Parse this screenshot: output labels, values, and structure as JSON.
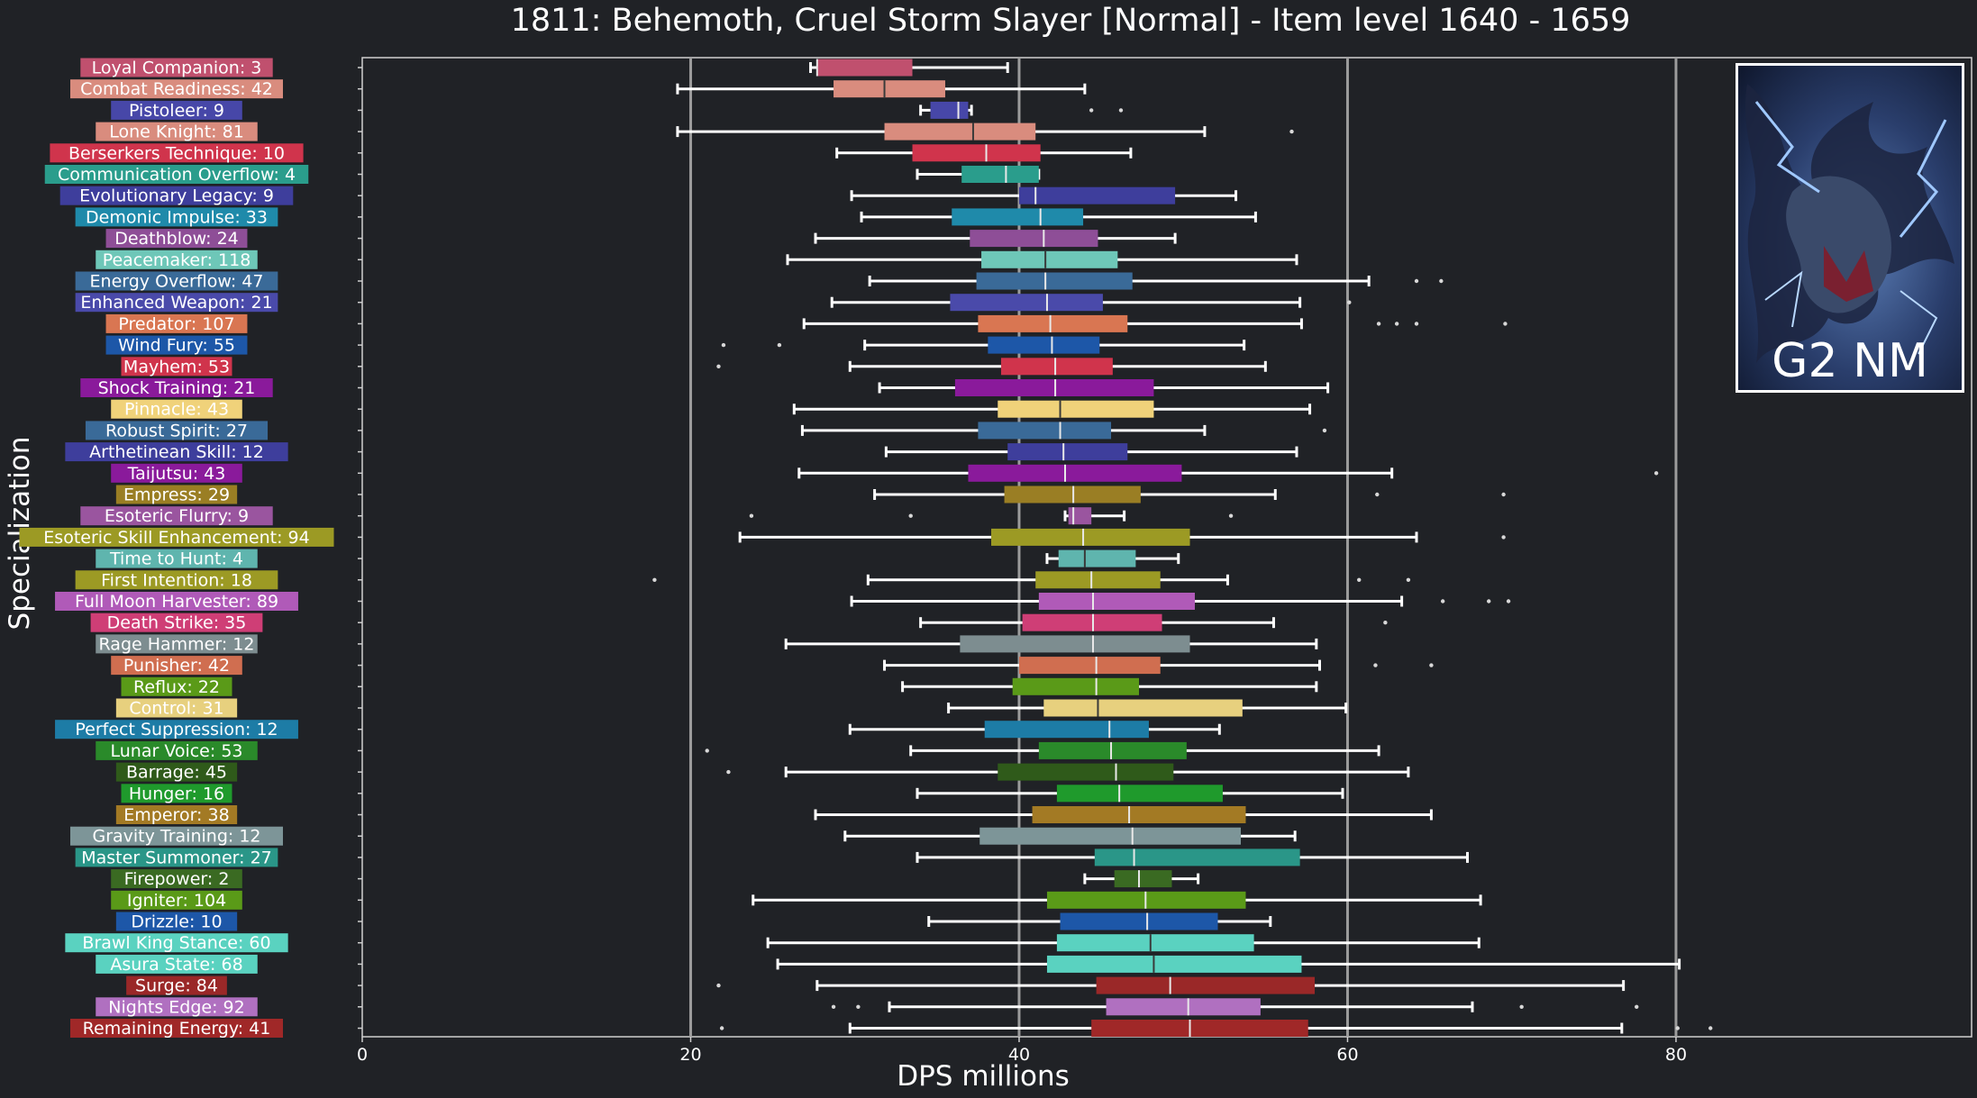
{
  "chart_data": {
    "type": "boxplot",
    "title": "1811: Behemoth, Cruel Storm Slayer [Normal] - Item level 1640 - 1659",
    "xlabel": "DPS millions",
    "ylabel": "Specialization",
    "xlim": [
      0,
      98
    ],
    "xticks": [
      0,
      20,
      40,
      60,
      80
    ],
    "vlines": [
      20,
      40,
      60,
      80
    ],
    "inset_label": "G2 NM",
    "series": [
      {
        "label": "Loyal Companion: 3",
        "color": "#c0506e",
        "whislo": 27.3,
        "q1": 27.7,
        "med": 27.7,
        "q3": 33.5,
        "whishi": 39.3,
        "fliers": []
      },
      {
        "label": "Combat Readiness: 42",
        "color": "#d98c7e",
        "whislo": 19.2,
        "q1": 28.7,
        "med": 31.8,
        "q3": 35.5,
        "whishi": 44.0,
        "fliers": []
      },
      {
        "label": "Pistoleer: 9",
        "color": "#4747a8",
        "whislo": 34.0,
        "q1": 34.6,
        "med": 36.3,
        "q3": 36.9,
        "whishi": 37.1,
        "fliers": [
          44.4,
          46.2
        ]
      },
      {
        "label": "Lone Knight: 81",
        "color": "#d98c7e",
        "whislo": 19.2,
        "q1": 31.8,
        "med": 37.2,
        "q3": 41.0,
        "whishi": 51.3,
        "fliers": [
          56.6
        ]
      },
      {
        "label": "Berserkers Technique: 10",
        "color": "#d0344c",
        "whislo": 28.9,
        "q1": 33.5,
        "med": 38.0,
        "q3": 41.3,
        "whishi": 46.8,
        "fliers": []
      },
      {
        "label": "Communication Overflow: 4",
        "color": "#2a9d8c",
        "whislo": 33.8,
        "q1": 36.5,
        "med": 39.2,
        "q3": 41.2,
        "whishi": 41.2,
        "fliers": []
      },
      {
        "label": "Evolutionary Legacy: 9",
        "color": "#3e3e9c",
        "whislo": 29.8,
        "q1": 40.0,
        "med": 41.0,
        "q3": 49.5,
        "whishi": 53.2,
        "fliers": []
      },
      {
        "label": "Demonic Impulse: 33",
        "color": "#1f8aaa",
        "whislo": 30.4,
        "q1": 35.9,
        "med": 41.3,
        "q3": 43.9,
        "whishi": 54.4,
        "fliers": []
      },
      {
        "label": "Deathblow: 24",
        "color": "#8e4e97",
        "whislo": 27.6,
        "q1": 37.0,
        "med": 41.5,
        "q3": 44.8,
        "whishi": 49.5,
        "fliers": []
      },
      {
        "label": "Peacemaker: 118",
        "color": "#6ec7b8",
        "whislo": 25.9,
        "q1": 37.7,
        "med": 41.6,
        "q3": 46.0,
        "whishi": 56.9,
        "fliers": []
      },
      {
        "label": "Energy Overflow: 47",
        "color": "#3a6a98",
        "whislo": 30.9,
        "q1": 37.4,
        "med": 41.6,
        "q3": 46.9,
        "whishi": 61.3,
        "fliers": [
          64.2,
          65.7
        ]
      },
      {
        "label": "Enhanced Weapon: 21",
        "color": "#4a4aaa",
        "whislo": 28.6,
        "q1": 35.8,
        "med": 41.7,
        "q3": 45.1,
        "whishi": 57.1,
        "fliers": [
          60.1
        ]
      },
      {
        "label": "Predator: 107",
        "color": "#d97652",
        "whislo": 26.9,
        "q1": 37.5,
        "med": 41.9,
        "q3": 46.6,
        "whishi": 57.2,
        "fliers": [
          61.9,
          63.0,
          64.2,
          69.6
        ]
      },
      {
        "label": "Wind Fury: 55",
        "color": "#1d57a8",
        "whislo": 30.6,
        "q1": 38.1,
        "med": 42.0,
        "q3": 44.9,
        "whishi": 53.7,
        "fliers": [
          22.0,
          25.4
        ]
      },
      {
        "label": "Mayhem: 53",
        "color": "#d0344c",
        "whislo": 29.7,
        "q1": 38.9,
        "med": 42.2,
        "q3": 45.7,
        "whishi": 55.0,
        "fliers": [
          21.7
        ]
      },
      {
        "label": "Shock Training: 21",
        "color": "#8a1a9b",
        "whislo": 31.5,
        "q1": 36.1,
        "med": 42.2,
        "q3": 48.2,
        "whishi": 58.8,
        "fliers": []
      },
      {
        "label": "Pinnacle: 43",
        "color": "#f0d27a",
        "whislo": 26.3,
        "q1": 38.7,
        "med": 42.5,
        "q3": 48.2,
        "whishi": 57.7,
        "fliers": []
      },
      {
        "label": "Robust Spirit: 27",
        "color": "#3a6a98",
        "whislo": 26.8,
        "q1": 37.5,
        "med": 42.5,
        "q3": 45.6,
        "whishi": 51.3,
        "fliers": [
          58.6
        ]
      },
      {
        "label": "Arthetinean Skill: 12",
        "color": "#3e3e9c",
        "whislo": 31.9,
        "q1": 39.3,
        "med": 42.7,
        "q3": 46.6,
        "whishi": 56.9,
        "fliers": []
      },
      {
        "label": "Taijutsu: 43",
        "color": "#8a1a9b",
        "whislo": 26.6,
        "q1": 36.9,
        "med": 42.8,
        "q3": 49.9,
        "whishi": 62.7,
        "fliers": [
          78.8
        ]
      },
      {
        "label": "Empress: 29",
        "color": "#9a7e24",
        "whislo": 31.2,
        "q1": 39.1,
        "med": 43.3,
        "q3": 47.4,
        "whishi": 55.6,
        "fliers": [
          61.8,
          69.5
        ]
      },
      {
        "label": "Esoteric Flurry: 9",
        "color": "#9a559f",
        "whislo": 42.8,
        "q1": 43.0,
        "med": 43.3,
        "q3": 44.4,
        "whishi": 46.4,
        "fliers": [
          23.7,
          33.4,
          52.9
        ]
      },
      {
        "label": "Esoteric Skill Enhancement: 94",
        "color": "#9c9a24",
        "whislo": 23.0,
        "q1": 38.3,
        "med": 43.9,
        "q3": 50.4,
        "whishi": 64.2,
        "fliers": [
          69.5
        ]
      },
      {
        "label": "Time to Hunt: 4",
        "color": "#5fb5ae",
        "whislo": 41.7,
        "q1": 42.4,
        "med": 44.0,
        "q3": 47.1,
        "whishi": 49.7,
        "fliers": []
      },
      {
        "label": "First Intention: 18",
        "color": "#9c9a24",
        "whislo": 30.8,
        "q1": 41.0,
        "med": 44.4,
        "q3": 48.6,
        "whishi": 52.7,
        "fliers": [
          17.8,
          60.7,
          63.7
        ]
      },
      {
        "label": "Full Moon Harvester: 89",
        "color": "#b05ab8",
        "whislo": 29.8,
        "q1": 41.2,
        "med": 44.5,
        "q3": 50.7,
        "whishi": 63.3,
        "fliers": [
          65.8,
          68.6,
          69.8
        ]
      },
      {
        "label": "Death Strike: 35",
        "color": "#cf3e76",
        "whislo": 34.0,
        "q1": 40.2,
        "med": 44.5,
        "q3": 48.7,
        "whishi": 55.5,
        "fliers": [
          62.3
        ]
      },
      {
        "label": "Rage Hammer: 12",
        "color": "#7d8d90",
        "whislo": 25.8,
        "q1": 36.4,
        "med": 44.5,
        "q3": 50.4,
        "whishi": 58.1,
        "fliers": []
      },
      {
        "label": "Punisher: 42",
        "color": "#d06e50",
        "whislo": 31.8,
        "q1": 40.0,
        "med": 44.7,
        "q3": 48.6,
        "whishi": 58.3,
        "fliers": [
          61.7,
          65.1
        ]
      },
      {
        "label": "Reflux: 22",
        "color": "#5a9a18",
        "whislo": 32.9,
        "q1": 39.6,
        "med": 44.7,
        "q3": 47.3,
        "whishi": 58.1,
        "fliers": []
      },
      {
        "label": "Control: 31",
        "color": "#e7d07e",
        "whislo": 35.7,
        "q1": 41.5,
        "med": 44.8,
        "q3": 53.6,
        "whishi": 59.9,
        "fliers": []
      },
      {
        "label": "Perfect Suppression: 12",
        "color": "#1d7ca6",
        "whislo": 29.7,
        "q1": 37.9,
        "med": 45.5,
        "q3": 47.9,
        "whishi": 52.2,
        "fliers": []
      },
      {
        "label": "Lunar Voice: 53",
        "color": "#2a8a2a",
        "whislo": 33.4,
        "q1": 41.2,
        "med": 45.6,
        "q3": 50.2,
        "whishi": 61.9,
        "fliers": [
          21.0
        ]
      },
      {
        "label": "Barrage: 45",
        "color": "#2f5a1a",
        "whislo": 25.8,
        "q1": 38.7,
        "med": 45.9,
        "q3": 49.4,
        "whishi": 63.7,
        "fliers": [
          22.3
        ]
      },
      {
        "label": "Hunger: 16",
        "color": "#1f9a2c",
        "whislo": 33.8,
        "q1": 42.3,
        "med": 46.1,
        "q3": 52.4,
        "whishi": 59.7,
        "fliers": []
      },
      {
        "label": "Emperor: 38",
        "color": "#a37a24",
        "whislo": 27.6,
        "q1": 40.8,
        "med": 46.7,
        "q3": 53.8,
        "whishi": 65.1,
        "fliers": []
      },
      {
        "label": "Gravity Training: 12",
        "color": "#7d9598",
        "whislo": 29.4,
        "q1": 37.6,
        "med": 46.9,
        "q3": 53.5,
        "whishi": 56.8,
        "fliers": []
      },
      {
        "label": "Master Summoner: 27",
        "color": "#2a9688",
        "whislo": 33.8,
        "q1": 44.6,
        "med": 47.0,
        "q3": 57.1,
        "whishi": 67.3,
        "fliers": []
      },
      {
        "label": "Firepower: 2",
        "color": "#3a6a22",
        "whislo": 44.0,
        "q1": 45.8,
        "med": 47.3,
        "q3": 49.3,
        "whishi": 50.9,
        "fliers": []
      },
      {
        "label": "Igniter: 104",
        "color": "#5a9a18",
        "whislo": 23.8,
        "q1": 41.7,
        "med": 47.7,
        "q3": 53.8,
        "whishi": 68.1,
        "fliers": []
      },
      {
        "label": "Drizzle: 10",
        "color": "#1d57a8",
        "whislo": 34.5,
        "q1": 42.5,
        "med": 47.8,
        "q3": 52.1,
        "whishi": 55.3,
        "fliers": []
      },
      {
        "label": "Brawl King Stance: 60",
        "color": "#5ad2c0",
        "whislo": 24.7,
        "q1": 42.3,
        "med": 48.0,
        "q3": 54.3,
        "whishi": 68.0,
        "fliers": []
      },
      {
        "label": "Asura State: 68",
        "color": "#5ad2c0",
        "whislo": 25.3,
        "q1": 41.7,
        "med": 48.2,
        "q3": 57.2,
        "whishi": 80.2,
        "fliers": []
      },
      {
        "label": "Surge: 84",
        "color": "#9a2828",
        "whislo": 27.7,
        "q1": 44.7,
        "med": 49.2,
        "q3": 58.0,
        "whishi": 76.8,
        "fliers": [
          21.7
        ]
      },
      {
        "label": "Nights Edge: 92",
        "color": "#b070c0",
        "whislo": 32.1,
        "q1": 45.3,
        "med": 50.3,
        "q3": 54.7,
        "whishi": 67.6,
        "fliers": [
          28.7,
          30.2,
          70.6,
          77.6
        ]
      },
      {
        "label": "Remaining Energy: 41",
        "color": "#a02828",
        "whislo": 29.7,
        "q1": 44.4,
        "med": 50.4,
        "q3": 57.6,
        "whishi": 76.7,
        "fliers": [
          21.9,
          80.1,
          82.1
        ]
      }
    ]
  }
}
